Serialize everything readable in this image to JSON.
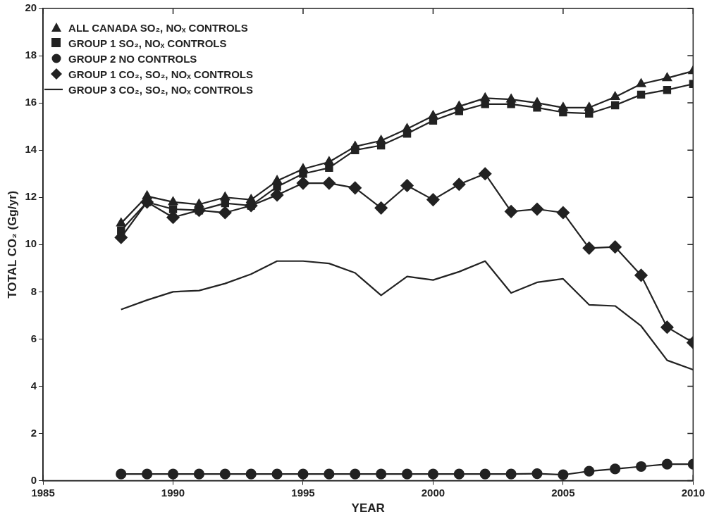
{
  "chart_data": {
    "type": "line",
    "xlabel": "YEAR",
    "ylabel": "TOTAL CO₂ (Gg/yr)",
    "x": [
      1988,
      1989,
      1990,
      1991,
      1992,
      1993,
      1994,
      1995,
      1996,
      1997,
      1998,
      1999,
      2000,
      2001,
      2002,
      2003,
      2004,
      2005,
      2006,
      2007,
      2008,
      2009,
      2010
    ],
    "xlim": [
      1985,
      2010
    ],
    "xticks": [
      1985,
      1990,
      1995,
      2000,
      2005,
      2010
    ],
    "ylim": [
      0,
      20
    ],
    "yticks": [
      0,
      2,
      4,
      6,
      8,
      10,
      12,
      14,
      16,
      18,
      20
    ],
    "grid": false,
    "legend": "top left",
    "series": [
      {
        "name": "ALL CANADA SO₂, NOₓ CONTROLS",
        "color": "#222222",
        "marker": "triangle",
        "values": [
          10.9,
          12.05,
          11.8,
          11.7,
          12.0,
          11.9,
          12.7,
          13.2,
          13.5,
          14.15,
          14.4,
          14.9,
          15.45,
          15.85,
          16.2,
          16.15,
          16.0,
          15.8,
          15.8,
          16.25,
          16.8,
          17.05,
          17.35
        ]
      },
      {
        "name": "GROUP 1 SO₂, NOₓ CONTROLS",
        "color": "#222222",
        "marker": "square",
        "values": [
          10.6,
          11.8,
          11.5,
          11.45,
          11.75,
          11.65,
          12.45,
          13.0,
          13.25,
          14.0,
          14.2,
          14.7,
          15.25,
          15.65,
          15.95,
          15.95,
          15.8,
          15.6,
          15.55,
          15.9,
          16.35,
          16.55,
          16.8
        ]
      },
      {
        "name": "GROUP 2 NO CONTROLS",
        "color": "#222222",
        "marker": "circle",
        "values": [
          0.28,
          0.28,
          0.28,
          0.28,
          0.28,
          0.28,
          0.28,
          0.28,
          0.28,
          0.28,
          0.28,
          0.28,
          0.28,
          0.28,
          0.28,
          0.28,
          0.3,
          0.25,
          0.4,
          0.5,
          0.6,
          0.7,
          0.7
        ]
      },
      {
        "name": "GROUP 1 CO₂, SO₂, NOₓ CONTROLS",
        "color": "#222222",
        "marker": "diamond",
        "values": [
          10.3,
          11.8,
          11.15,
          11.45,
          11.35,
          11.65,
          12.1,
          12.6,
          12.6,
          12.4,
          11.55,
          12.5,
          11.9,
          12.55,
          13.0,
          11.4,
          11.5,
          11.35,
          9.85,
          9.9,
          8.7,
          6.5,
          5.85
        ]
      },
      {
        "name": "GROUP 3 CO₂, SO₂, NOₓ CONTROLS",
        "color": "#222222",
        "marker": "none",
        "values": [
          7.25,
          7.65,
          8.0,
          8.05,
          8.35,
          8.75,
          9.3,
          9.3,
          9.2,
          8.8,
          7.85,
          8.65,
          8.5,
          8.85,
          9.3,
          7.95,
          8.4,
          8.55,
          7.45,
          7.4,
          6.55,
          5.1,
          4.7
        ]
      }
    ]
  }
}
